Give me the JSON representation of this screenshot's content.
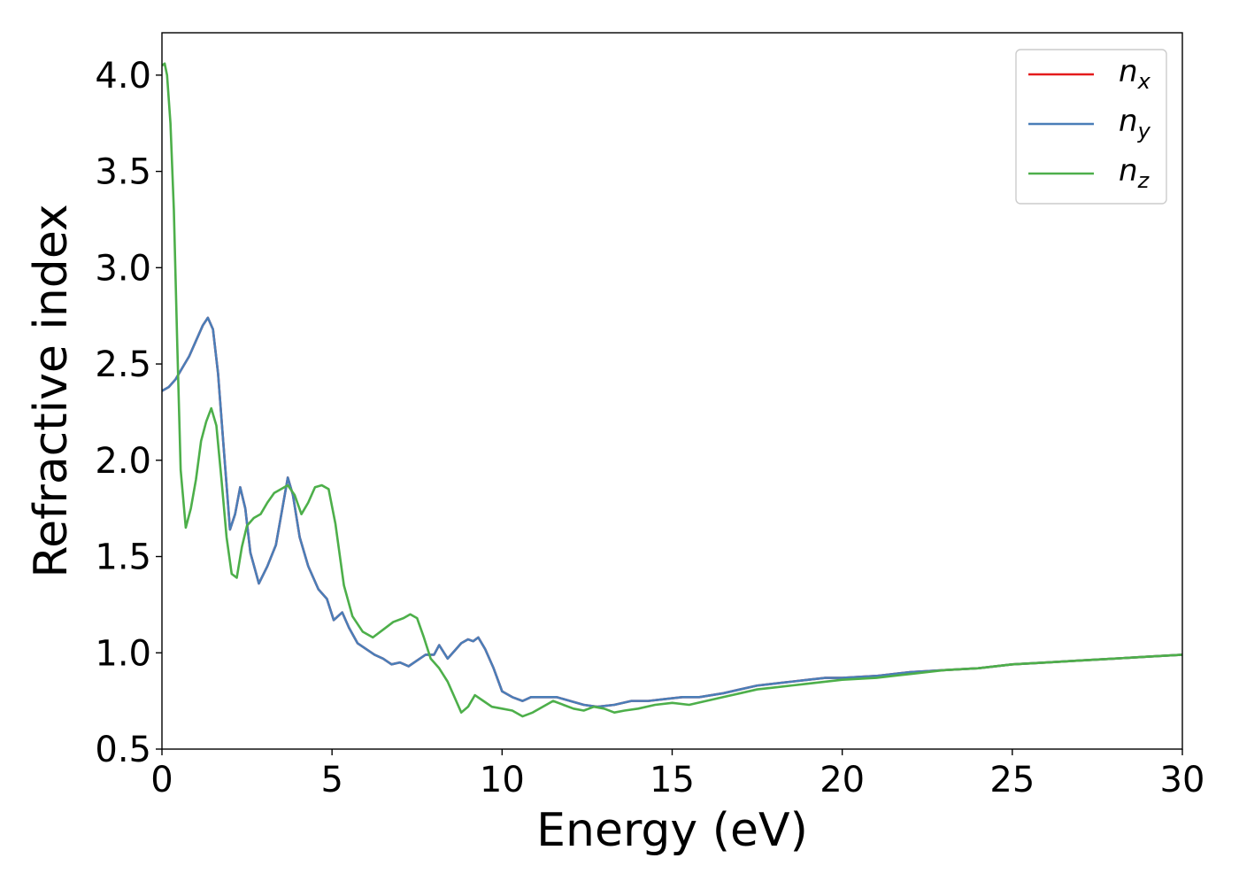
{
  "chart_data": {
    "type": "line",
    "title": "",
    "xlabel": "Energy (eV)",
    "ylabel": "Refractive index",
    "xlim": [
      0,
      30
    ],
    "ylim": [
      0.5,
      4.22
    ],
    "xticks": [
      "0",
      "5",
      "10",
      "15",
      "20",
      "25",
      "30"
    ],
    "yticks": [
      "0.5",
      "1.0",
      "1.5",
      "2.0",
      "2.5",
      "3.0",
      "3.5",
      "4.0"
    ],
    "grid": false,
    "legend_position": "top-right",
    "series": [
      {
        "name": "n_x",
        "legend": {
          "base": "n",
          "sub": "x"
        },
        "color": "#e41a1c",
        "x": [
          0,
          0.2,
          0.4,
          0.6,
          0.8,
          1.0,
          1.2,
          1.35,
          1.5,
          1.65,
          1.8,
          2.0,
          2.15,
          2.3,
          2.45,
          2.6,
          2.85,
          3.1,
          3.35,
          3.55,
          3.7,
          3.85,
          4.05,
          4.3,
          4.6,
          4.85,
          5.05,
          5.3,
          5.5,
          5.75,
          6.0,
          6.25,
          6.5,
          6.75,
          7.0,
          7.25,
          7.5,
          7.75,
          8.0,
          8.15,
          8.4,
          8.6,
          8.8,
          9.0,
          9.15,
          9.3,
          9.5,
          9.75,
          10.0,
          10.3,
          10.6,
          10.85,
          11.2,
          11.6,
          12.0,
          12.4,
          12.8,
          13.3,
          13.8,
          14.3,
          14.8,
          15.3,
          15.8,
          16.5,
          17.0,
          17.5,
          18.0,
          18.5,
          19.0,
          19.5,
          20.0,
          21.0,
          22.0,
          23.0,
          24.0,
          25.0,
          26.0,
          27.0,
          28.0,
          29.0,
          30.0
        ],
        "y": [
          2.36,
          2.38,
          2.42,
          2.48,
          2.54,
          2.62,
          2.7,
          2.74,
          2.68,
          2.45,
          2.1,
          1.64,
          1.72,
          1.86,
          1.75,
          1.52,
          1.36,
          1.45,
          1.56,
          1.76,
          1.91,
          1.82,
          1.6,
          1.45,
          1.33,
          1.28,
          1.17,
          1.21,
          1.13,
          1.05,
          1.02,
          0.99,
          0.97,
          0.94,
          0.95,
          0.93,
          0.96,
          0.99,
          0.99,
          1.04,
          0.97,
          1.01,
          1.05,
          1.07,
          1.06,
          1.08,
          1.02,
          0.92,
          0.8,
          0.77,
          0.75,
          0.77,
          0.77,
          0.77,
          0.75,
          0.73,
          0.72,
          0.73,
          0.75,
          0.75,
          0.76,
          0.77,
          0.77,
          0.79,
          0.81,
          0.83,
          0.84,
          0.85,
          0.86,
          0.87,
          0.87,
          0.88,
          0.9,
          0.91,
          0.92,
          0.94,
          0.95,
          0.96,
          0.97,
          0.98,
          0.99
        ]
      },
      {
        "name": "n_y",
        "legend": {
          "base": "n",
          "sub": "y"
        },
        "color": "#4a7eb8",
        "x": [
          0,
          0.2,
          0.4,
          0.6,
          0.8,
          1.0,
          1.2,
          1.35,
          1.5,
          1.65,
          1.8,
          2.0,
          2.15,
          2.3,
          2.45,
          2.6,
          2.85,
          3.1,
          3.35,
          3.55,
          3.7,
          3.85,
          4.05,
          4.3,
          4.6,
          4.85,
          5.05,
          5.3,
          5.5,
          5.75,
          6.0,
          6.25,
          6.5,
          6.75,
          7.0,
          7.25,
          7.5,
          7.75,
          8.0,
          8.15,
          8.4,
          8.6,
          8.8,
          9.0,
          9.15,
          9.3,
          9.5,
          9.75,
          10.0,
          10.3,
          10.6,
          10.85,
          11.2,
          11.6,
          12.0,
          12.4,
          12.8,
          13.3,
          13.8,
          14.3,
          14.8,
          15.3,
          15.8,
          16.5,
          17.0,
          17.5,
          18.0,
          18.5,
          19.0,
          19.5,
          20.0,
          21.0,
          22.0,
          23.0,
          24.0,
          25.0,
          26.0,
          27.0,
          28.0,
          29.0,
          30.0
        ],
        "y": [
          2.36,
          2.38,
          2.42,
          2.48,
          2.54,
          2.62,
          2.7,
          2.74,
          2.68,
          2.45,
          2.1,
          1.64,
          1.72,
          1.86,
          1.75,
          1.52,
          1.36,
          1.45,
          1.56,
          1.76,
          1.91,
          1.82,
          1.6,
          1.45,
          1.33,
          1.28,
          1.17,
          1.21,
          1.13,
          1.05,
          1.02,
          0.99,
          0.97,
          0.94,
          0.95,
          0.93,
          0.96,
          0.99,
          0.99,
          1.04,
          0.97,
          1.01,
          1.05,
          1.07,
          1.06,
          1.08,
          1.02,
          0.92,
          0.8,
          0.77,
          0.75,
          0.77,
          0.77,
          0.77,
          0.75,
          0.73,
          0.72,
          0.73,
          0.75,
          0.75,
          0.76,
          0.77,
          0.77,
          0.79,
          0.81,
          0.83,
          0.84,
          0.85,
          0.86,
          0.87,
          0.87,
          0.88,
          0.9,
          0.91,
          0.92,
          0.94,
          0.95,
          0.96,
          0.97,
          0.98,
          0.99
        ]
      },
      {
        "name": "n_z",
        "legend": {
          "base": "n",
          "sub": "z"
        },
        "color": "#4daf4a",
        "x": [
          0,
          0.08,
          0.15,
          0.25,
          0.35,
          0.45,
          0.55,
          0.7,
          0.85,
          1.0,
          1.15,
          1.3,
          1.45,
          1.6,
          1.75,
          1.9,
          2.05,
          2.2,
          2.35,
          2.5,
          2.7,
          2.9,
          3.1,
          3.3,
          3.5,
          3.7,
          3.9,
          4.1,
          4.3,
          4.5,
          4.7,
          4.9,
          5.1,
          5.35,
          5.6,
          5.9,
          6.2,
          6.5,
          6.8,
          7.1,
          7.3,
          7.5,
          7.7,
          7.9,
          8.15,
          8.4,
          8.6,
          8.8,
          9.0,
          9.2,
          9.45,
          9.7,
          10.0,
          10.3,
          10.6,
          10.9,
          11.2,
          11.5,
          11.8,
          12.1,
          12.4,
          12.7,
          13.0,
          13.3,
          13.6,
          14.0,
          14.5,
          15.0,
          15.5,
          16.0,
          16.5,
          17.0,
          17.5,
          18.0,
          18.5,
          19.0,
          20.0,
          21.0,
          22.0,
          23.0,
          24.0,
          25.0,
          26.0,
          27.0,
          28.0,
          29.0,
          30.0
        ],
        "y": [
          4.05,
          4.06,
          4.0,
          3.75,
          3.3,
          2.6,
          1.95,
          1.65,
          1.75,
          1.9,
          2.1,
          2.2,
          2.27,
          2.18,
          1.9,
          1.6,
          1.41,
          1.39,
          1.55,
          1.66,
          1.7,
          1.72,
          1.78,
          1.83,
          1.85,
          1.87,
          1.82,
          1.72,
          1.78,
          1.86,
          1.87,
          1.85,
          1.67,
          1.35,
          1.19,
          1.11,
          1.08,
          1.12,
          1.16,
          1.18,
          1.2,
          1.18,
          1.08,
          0.97,
          0.92,
          0.85,
          0.77,
          0.69,
          0.72,
          0.78,
          0.75,
          0.72,
          0.71,
          0.7,
          0.67,
          0.69,
          0.72,
          0.75,
          0.73,
          0.71,
          0.7,
          0.72,
          0.71,
          0.69,
          0.7,
          0.71,
          0.73,
          0.74,
          0.73,
          0.75,
          0.77,
          0.79,
          0.81,
          0.82,
          0.83,
          0.84,
          0.86,
          0.87,
          0.89,
          0.91,
          0.92,
          0.94,
          0.95,
          0.96,
          0.97,
          0.98,
          0.99
        ]
      }
    ]
  }
}
